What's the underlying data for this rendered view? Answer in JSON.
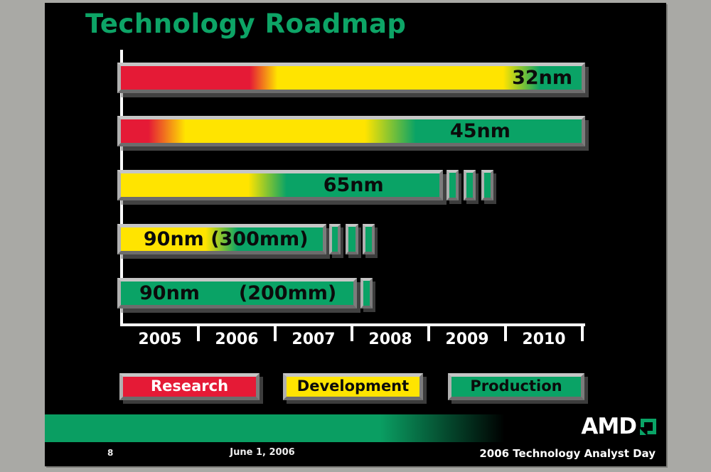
{
  "slide": {
    "title": "Technology Roadmap",
    "footer": {
      "page_number": "8",
      "date": "June 1, 2006",
      "event": "2006 Technology Analyst Day",
      "logo_text": "AMD"
    },
    "colors": {
      "title_green": "#0da466",
      "footer_green": "#0a9e62"
    }
  },
  "chart_data": {
    "type": "bar",
    "subtype": "roadmap-gantt",
    "title": "Technology Roadmap",
    "xlabel": "",
    "ylabel": "",
    "grid": false,
    "x_axis": {
      "tick_labels": [
        "2005",
        "2006",
        "2007",
        "2008",
        "2009",
        "2010"
      ],
      "range": [
        2005,
        2011
      ]
    },
    "phase_colors": {
      "research": "#e51a36",
      "development": "#ffe400",
      "production": "#0aa366"
    },
    "legend": {
      "position": "bottom",
      "entries": [
        {
          "label": "Research",
          "phase": "research",
          "color": "#e51a36",
          "text_color": "#ffffff"
        },
        {
          "label": "Development",
          "phase": "development",
          "color": "#ffe400",
          "text_color": "#0b0b0b"
        },
        {
          "label": "Production",
          "phase": "production",
          "color": "#0aa366",
          "text_color": "#0b0b0b"
        }
      ]
    },
    "bars": [
      {
        "id": "32nm",
        "label": "32nm",
        "start_year": 2005,
        "end_year": 2011,
        "label_pos": {
          "align": "right"
        },
        "stops": [
          {
            "phase": "research",
            "at": 0
          },
          {
            "phase": "research",
            "at": 28
          },
          {
            "phase": "development",
            "at": 34
          },
          {
            "phase": "development",
            "at": 83
          },
          {
            "phase": "production",
            "at": 91
          },
          {
            "phase": "production",
            "at": 100
          }
        ],
        "markers": []
      },
      {
        "id": "45nm",
        "label": "45nm",
        "start_year": 2005,
        "end_year": 2011,
        "label_pos": {
          "align": "center",
          "at": 78
        },
        "stops": [
          {
            "phase": "research",
            "at": 0
          },
          {
            "phase": "research",
            "at": 6
          },
          {
            "phase": "development",
            "at": 14
          },
          {
            "phase": "development",
            "at": 53
          },
          {
            "phase": "production",
            "at": 64
          },
          {
            "phase": "production",
            "at": 100
          }
        ],
        "markers": []
      },
      {
        "id": "65nm",
        "label": "65nm",
        "start_year": 2005,
        "end_year": 2009.15,
        "label_pos": {
          "align": "center",
          "at": 73
        },
        "stops": [
          {
            "phase": "development",
            "at": 0
          },
          {
            "phase": "development",
            "at": 40
          },
          {
            "phase": "production",
            "at": 52
          },
          {
            "phase": "production",
            "at": 100
          }
        ],
        "markers": [
          {
            "from": 2009.24,
            "to": 2009.4
          },
          {
            "from": 2009.46,
            "to": 2009.62
          },
          {
            "from": 2009.69,
            "to": 2009.85
          }
        ]
      },
      {
        "id": "90nm-300mm",
        "label": "90nm (300mm)",
        "start_year": 2005,
        "end_year": 2007.63,
        "label_pos": {
          "align": "center",
          "at": 52
        },
        "stops": [
          {
            "phase": "development",
            "at": 0
          },
          {
            "phase": "development",
            "at": 42
          },
          {
            "phase": "production",
            "at": 58
          },
          {
            "phase": "production",
            "at": 100
          }
        ],
        "markers": [
          {
            "from": 2007.71,
            "to": 2007.86
          },
          {
            "from": 2007.93,
            "to": 2008.09
          },
          {
            "from": 2008.15,
            "to": 2008.31
          }
        ]
      },
      {
        "id": "90nm-200mm",
        "label": "90nm",
        "label2": "(200mm)",
        "start_year": 2005,
        "end_year": 2008.03,
        "label_pos": {
          "align": "split"
        },
        "stops": [
          {
            "phase": "production",
            "at": 0
          },
          {
            "phase": "production",
            "at": 100
          }
        ],
        "markers": [
          {
            "from": 2008.12,
            "to": 2008.28
          }
        ]
      }
    ]
  }
}
